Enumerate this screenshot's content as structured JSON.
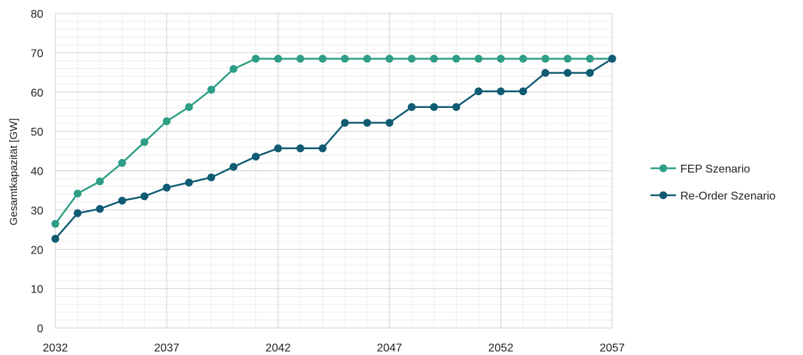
{
  "chart_data": {
    "type": "line",
    "title": "",
    "xlabel": "",
    "ylabel": "Gesamtkapazität [GW]",
    "xlim": [
      2032,
      2057
    ],
    "ylim": [
      0,
      80
    ],
    "x_ticks": [
      "2032",
      "2037",
      "2042",
      "2047",
      "2052",
      "2057"
    ],
    "y_ticks": [
      "0",
      "10",
      "20",
      "30",
      "40",
      "50",
      "60",
      "70",
      "80"
    ],
    "grid": true,
    "legend_position": "right",
    "x": [
      2032,
      2033,
      2034,
      2035,
      2036,
      2037,
      2038,
      2039,
      2040,
      2041,
      2042,
      2043,
      2044,
      2045,
      2046,
      2047,
      2048,
      2049,
      2050,
      2051,
      2052,
      2053,
      2054,
      2055,
      2056,
      2057
    ],
    "series": [
      {
        "name": "FEP Szenario",
        "color": "#2e9e86",
        "values": [
          26.5,
          34.2,
          37.3,
          42.0,
          47.3,
          52.6,
          56.2,
          60.6,
          65.9,
          68.5,
          68.5,
          68.5,
          68.5,
          68.5,
          68.5,
          68.5,
          68.5,
          68.5,
          68.5,
          68.5,
          68.5,
          68.5,
          68.5,
          68.5,
          68.5,
          68.5
        ]
      },
      {
        "name": "Re-Order Szenario",
        "color": "#0f5b73",
        "values": [
          22.7,
          29.2,
          30.3,
          32.4,
          33.5,
          35.7,
          37.0,
          38.3,
          41.0,
          43.6,
          45.7,
          45.7,
          45.7,
          52.2,
          52.2,
          52.2,
          56.2,
          56.2,
          56.2,
          60.2,
          60.2,
          60.2,
          64.9,
          64.9,
          64.9,
          68.5
        ]
      }
    ]
  }
}
